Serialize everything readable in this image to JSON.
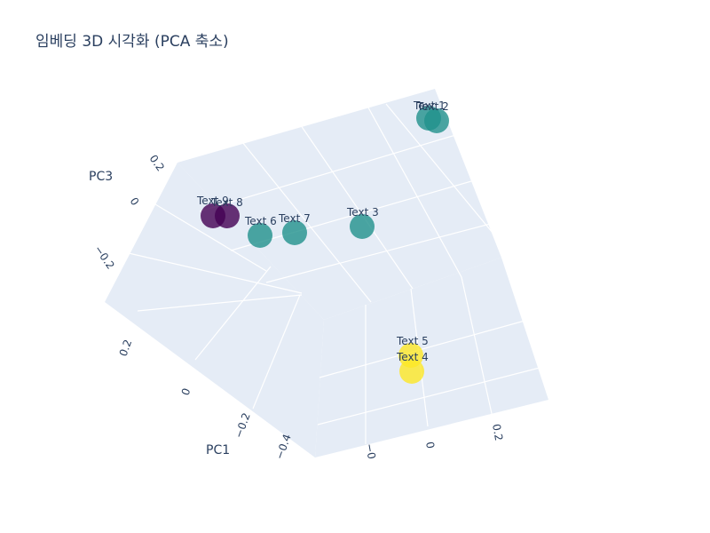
{
  "chart_data": {
    "type": "scatter3d",
    "title": "임베딩 3D 시각화 (PCA 축소)",
    "xlabel": "PC1",
    "ylabel": "",
    "zlabel": "PC3",
    "x_ticks": [
      "0.2",
      "0",
      "−0.2",
      "−0.4"
    ],
    "y_ticks": [
      "−0",
      "0",
      "0.2"
    ],
    "z_ticks": [
      "0.2",
      "0",
      "−0.2"
    ],
    "colorscale": [
      "#440154",
      "#21918c",
      "#fde725"
    ],
    "points": [
      {
        "label": "Text 1",
        "color": "#21918c"
      },
      {
        "label": "Text 2",
        "color": "#21918c"
      },
      {
        "label": "Text 3",
        "color": "#21918c"
      },
      {
        "label": "Text 4",
        "color": "#fde725"
      },
      {
        "label": "Text 5",
        "color": "#fde725"
      },
      {
        "label": "Text 6",
        "color": "#21918c"
      },
      {
        "label": "Text 7",
        "color": "#21918c"
      },
      {
        "label": "Text 8",
        "color": "#440154"
      },
      {
        "label": "Text 9",
        "color": "#440154"
      }
    ]
  }
}
